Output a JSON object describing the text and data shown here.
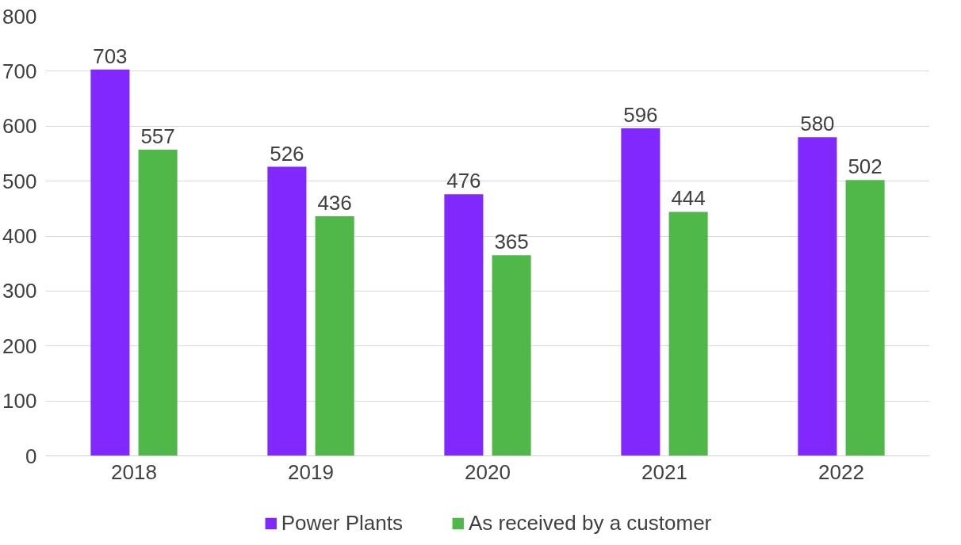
{
  "chart_data": {
    "type": "bar",
    "categories": [
      "2018",
      "2019",
      "2020",
      "2021",
      "2022"
    ],
    "series": [
      {
        "name": "Power Plants",
        "color": "#8028ff",
        "values": [
          703,
          526,
          476,
          596,
          580
        ]
      },
      {
        "name": "As received by a customer",
        "color": "#50b848",
        "values": [
          557,
          436,
          365,
          444,
          502
        ]
      }
    ],
    "ylim": [
      0,
      800
    ],
    "yticks": [
      0,
      100,
      200,
      300,
      400,
      500,
      600,
      700,
      800
    ],
    "grid": "y",
    "legend": "bottom",
    "data_labels": true
  }
}
